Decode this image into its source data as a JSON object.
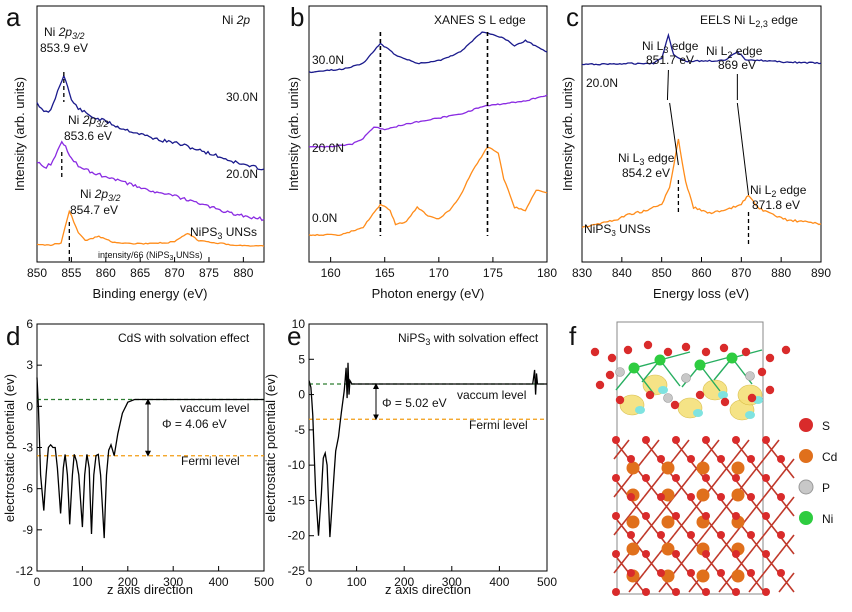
{
  "chart_data": [
    {
      "panel": "a",
      "type": "line",
      "title": "Ni 2p",
      "xlabel": "Binding energy (eV)",
      "ylabel": "Intensity (arb. units)",
      "xlim": [
        850,
        883
      ],
      "xticks": [
        850,
        855,
        860,
        865,
        870,
        875,
        880
      ],
      "series": [
        {
          "name": "30.0N",
          "color": "#1a1a8c",
          "offset": 3.4,
          "points": [
            [
              850,
              1.65
            ],
            [
              851,
              1.4
            ],
            [
              852,
              1.45
            ],
            [
              853,
              1.9
            ],
            [
              853.9,
              2.3
            ],
            [
              855,
              1.7
            ],
            [
              856,
              1.5
            ],
            [
              858,
              1.3
            ],
            [
              860,
              1.2
            ],
            [
              862,
              1.05
            ],
            [
              864,
              0.95
            ],
            [
              866,
              0.85
            ],
            [
              868,
              0.75
            ],
            [
              870,
              0.7
            ],
            [
              872,
              0.6
            ],
            [
              874,
              0.5
            ],
            [
              876,
              0.4
            ],
            [
              878,
              0.28
            ],
            [
              880,
              0.18
            ],
            [
              883,
              0.08
            ]
          ]
        },
        {
          "name": "20.0N",
          "color": "#8a2be2",
          "offset": 1.9,
          "points": [
            [
              850,
              1.35
            ],
            [
              851,
              1.2
            ],
            [
              852,
              1.3
            ],
            [
              853,
              1.6
            ],
            [
              853.6,
              1.85
            ],
            [
              855,
              1.45
            ],
            [
              856,
              1.25
            ],
            [
              858,
              1.1
            ],
            [
              860,
              1.0
            ],
            [
              862,
              0.9
            ],
            [
              864,
              0.8
            ],
            [
              866,
              0.7
            ],
            [
              868,
              0.6
            ],
            [
              870,
              0.55
            ],
            [
              872,
              0.45
            ],
            [
              874,
              0.35
            ],
            [
              876,
              0.25
            ],
            [
              878,
              0.15
            ],
            [
              880,
              0.08
            ],
            [
              883,
              0.0
            ]
          ]
        },
        {
          "name": "NiPS3 UNSs",
          "color": "#ff8c1a",
          "offset": 0,
          "points": [
            [
              850,
              0.15
            ],
            [
              852,
              0.15
            ],
            [
              853.5,
              0.2
            ],
            [
              854.7,
              0.95
            ],
            [
              856,
              0.45
            ],
            [
              857,
              0.25
            ],
            [
              859,
              0.35
            ],
            [
              861,
              0.22
            ],
            [
              864,
              0.18
            ],
            [
              867,
              0.18
            ],
            [
              870,
              0.22
            ],
            [
              871.9,
              0.42
            ],
            [
              873.5,
              0.25
            ],
            [
              876,
              0.2
            ],
            [
              879,
              0.14
            ],
            [
              883,
              0.12
            ]
          ]
        }
      ],
      "annotations": [
        {
          "text": "Ni 2p3/2",
          "value": "853.9 eV",
          "x": 853.9
        },
        {
          "text": "Ni 2p3/2",
          "value": "853.6 eV",
          "x": 853.6
        },
        {
          "text": "Ni 2p3/2",
          "value": "854.7 eV",
          "x": 854.7
        }
      ]
    },
    {
      "panel": "b",
      "type": "line",
      "title": "XANES S L edge",
      "xlabel": "Photon energy (eV)",
      "ylabel": "Intensity (arb. units)",
      "xlim": [
        158,
        180
      ],
      "xticks": [
        160,
        165,
        170,
        175,
        180
      ],
      "dashed_lines_x": [
        164.6,
        174.5
      ],
      "series": [
        {
          "name": "30.0N",
          "color": "#1a1a8c",
          "points": [
            [
              158,
              2.85
            ],
            [
              161,
              2.9
            ],
            [
              163,
              3.0
            ],
            [
              164.6,
              3.35
            ],
            [
              166,
              3.15
            ],
            [
              168,
              3.0
            ],
            [
              170,
              3.05
            ],
            [
              172,
              3.2
            ],
            [
              174,
              3.55
            ],
            [
              175,
              3.5
            ],
            [
              176,
              3.45
            ],
            [
              177,
              3.3
            ],
            [
              178,
              3.4
            ],
            [
              180,
              3.2
            ]
          ]
        },
        {
          "name": "20.0N",
          "color": "#8a2be2",
          "points": [
            [
              158,
              1.55
            ],
            [
              160,
              1.55
            ],
            [
              162,
              1.6
            ],
            [
              163,
              1.7
            ],
            [
              164,
              1.9
            ],
            [
              165,
              1.85
            ],
            [
              167,
              1.95
            ],
            [
              170,
              2.05
            ],
            [
              172,
              2.12
            ],
            [
              174,
              2.25
            ],
            [
              176,
              2.3
            ],
            [
              178,
              2.35
            ],
            [
              180,
              2.45
            ]
          ]
        },
        {
          "name": "0.0N",
          "color": "#ff8c1a",
          "points": [
            [
              158,
              0.02
            ],
            [
              161,
              0.02
            ],
            [
              163,
              0.15
            ],
            [
              164.6,
              0.55
            ],
            [
              165.5,
              0.45
            ],
            [
              166,
              0.2
            ],
            [
              167,
              0.25
            ],
            [
              168,
              0.5
            ],
            [
              169,
              0.35
            ],
            [
              170,
              0.3
            ],
            [
              171,
              0.45
            ],
            [
              172,
              0.7
            ],
            [
              173,
              1.1
            ],
            [
              174.5,
              1.55
            ],
            [
              175.5,
              1.45
            ],
            [
              176,
              1.0
            ],
            [
              177,
              0.5
            ],
            [
              178,
              0.45
            ],
            [
              179,
              0.8
            ],
            [
              180,
              0.75
            ]
          ]
        }
      ]
    },
    {
      "panel": "c",
      "type": "line",
      "title": "EELS Ni L2,3 edge",
      "xlabel": "Energy loss (eV)",
      "ylabel": "Intensity (arb. units)",
      "xlim": [
        830,
        890
      ],
      "xticks": [
        830,
        840,
        850,
        860,
        870,
        880,
        890
      ],
      "series": [
        {
          "name": "20.0N",
          "color": "#1a1a8c",
          "points": [
            [
              830,
              2.7
            ],
            [
              848,
              2.72
            ],
            [
              850,
              2.8
            ],
            [
              851.7,
              3.15
            ],
            [
              853,
              2.85
            ],
            [
              856,
              2.75
            ],
            [
              866,
              2.76
            ],
            [
              869,
              2.9
            ],
            [
              871,
              2.78
            ],
            [
              880,
              2.74
            ],
            [
              890,
              2.72
            ]
          ]
        },
        {
          "name": "NiPS3 UNSs",
          "color": "#ff8c1a",
          "points": [
            [
              830,
              0.2
            ],
            [
              838,
              0.3
            ],
            [
              842,
              0.4
            ],
            [
              846,
              0.45
            ],
            [
              850,
              0.55
            ],
            [
              852,
              0.8
            ],
            [
              854.2,
              1.55
            ],
            [
              856,
              0.9
            ],
            [
              858,
              0.5
            ],
            [
              862,
              0.42
            ],
            [
              866,
              0.45
            ],
            [
              870,
              0.55
            ],
            [
              871.8,
              0.7
            ],
            [
              874,
              0.5
            ],
            [
              878,
              0.38
            ],
            [
              882,
              0.3
            ],
            [
              886,
              0.28
            ],
            [
              890,
              0.25
            ]
          ]
        }
      ],
      "annotations": [
        {
          "text": "Ni L3 edge",
          "value": "851.7 eV"
        },
        {
          "text": "Ni L2 edge",
          "value": "869 eV"
        },
        {
          "text": "Ni L3 edge",
          "value": "854.2 eV"
        },
        {
          "text": "Ni L2 edge",
          "value": "871.8 eV"
        }
      ]
    },
    {
      "panel": "d",
      "type": "line",
      "title": "CdS with solvation effect",
      "xlabel": "z axis direction",
      "ylabel": "electrostatic potential (ev)",
      "xlim": [
        0,
        500
      ],
      "ylim": [
        -12,
        6
      ],
      "xticks": [
        0,
        100,
        200,
        300,
        400,
        500
      ],
      "yticks": [
        -12,
        -9,
        -6,
        -3,
        0,
        3,
        6
      ],
      "vacuum_level": 0.5,
      "fermi_level": -3.6,
      "work_function": "Φ = 4.06 eV",
      "series": [
        {
          "name": "potential",
          "color": "#000000",
          "points": [
            [
              0,
              2.1
            ],
            [
              3,
              0
            ],
            [
              8,
              -5
            ],
            [
              15,
              -7.6
            ],
            [
              20,
              -5
            ],
            [
              25,
              -3
            ],
            [
              30,
              -2.8
            ],
            [
              35,
              -3
            ],
            [
              40,
              -3
            ],
            [
              45,
              -4.5
            ],
            [
              52,
              -7.8
            ],
            [
              58,
              -4.5
            ],
            [
              62,
              -3.5
            ],
            [
              67,
              -5
            ],
            [
              72,
              -8.6
            ],
            [
              78,
              -5
            ],
            [
              82,
              -3.5
            ],
            [
              87,
              -4
            ],
            [
              92,
              -5
            ],
            [
              100,
              -8.8
            ],
            [
              105,
              -5
            ],
            [
              110,
              -3.5
            ],
            [
              115,
              -4.5
            ],
            [
              120,
              -9.3
            ],
            [
              125,
              -5
            ],
            [
              130,
              -3.6
            ],
            [
              135,
              -3.5
            ],
            [
              140,
              -5
            ],
            [
              148,
              -9.6
            ],
            [
              153,
              -5
            ],
            [
              158,
              -3.2
            ],
            [
              163,
              -2.8
            ],
            [
              170,
              -3.6
            ],
            [
              178,
              -2
            ],
            [
              188,
              -0.5
            ],
            [
              200,
              0.3
            ],
            [
              215,
              0.5
            ],
            [
              240,
              0.5
            ],
            [
              500,
              0.5
            ]
          ]
        }
      ]
    },
    {
      "panel": "e",
      "type": "line",
      "title": "NiPS3 with solvation effect",
      "xlabel": "z axis direction",
      "ylabel": "electrostatic potential (ev)",
      "xlim": [
        0,
        500
      ],
      "ylim": [
        -25,
        10
      ],
      "xticks": [
        0,
        100,
        200,
        300,
        400,
        500
      ],
      "yticks": [
        -25,
        -20,
        -15,
        -10,
        -5,
        0,
        5,
        10
      ],
      "vacuum_level": 1.5,
      "fermi_level": -3.5,
      "work_function": "Φ = 5.02 eV",
      "series": [
        {
          "name": "potential",
          "color": "#000000",
          "points": [
            [
              0,
              2
            ],
            [
              4,
              1
            ],
            [
              8,
              -3
            ],
            [
              14,
              -14
            ],
            [
              20,
              -20
            ],
            [
              26,
              -14
            ],
            [
              30,
              -9
            ],
            [
              34,
              -8.3
            ],
            [
              38,
              -10
            ],
            [
              44,
              -20.2
            ],
            [
              50,
              -14
            ],
            [
              56,
              -8
            ],
            [
              62,
              -6
            ],
            [
              68,
              -2.5
            ],
            [
              74,
              0.5
            ],
            [
              78,
              3.8
            ],
            [
              80,
              -0.5
            ],
            [
              82,
              4.5
            ],
            [
              84,
              0
            ],
            [
              86,
              2
            ],
            [
              90,
              1.5
            ],
            [
              200,
              1.5
            ],
            [
              470,
              1.5
            ],
            [
              474,
              3.5
            ],
            [
              476,
              0
            ],
            [
              478,
              3
            ],
            [
              480,
              1.5
            ],
            [
              500,
              1.5
            ]
          ]
        }
      ]
    }
  ],
  "labels": {
    "a": {
      "letter": "a",
      "ni2p": "Ni 2p",
      "ni_prefix": "Ni",
      "p32": "2p",
      "p32_sub": "3/2",
      "e30": "853.9 eV",
      "e20": "853.6 eV",
      "e0": "854.7 eV",
      "s30": "30.0N",
      "s20": "20.0N",
      "sunss_main": "NiPS",
      "sunss_sub": "3",
      "sunss_rest": " UNSs",
      "scale_note_a": "intensity/66 (NiPS",
      "scale_note_sub": "3",
      "scale_note_b": " UNSs)"
    },
    "b": {
      "letter": "b",
      "title": "XANES S L edge",
      "s30": "30.0N",
      "s20": "20.0N",
      "s0": "0.0N"
    },
    "c": {
      "letter": "c",
      "title_main": "EELS Ni L",
      "title_sub": "2,3",
      "title_rest": " edge",
      "s20": "20.0N",
      "sunss_main": "NiPS",
      "sunss_sub": "3",
      "sunss_rest": " UNSs",
      "l3a_main": "Ni L",
      "l3a_sub": "3",
      "l3a_rest": " edge",
      "l3a_e": "851.7 eV",
      "l2a_main": "Ni L",
      "l2a_sub": "2",
      "l2a_rest": " edge",
      "l2a_e": "869 eV",
      "l3b_main": "Ni L",
      "l3b_sub": "3",
      "l3b_rest": " edge",
      "l3b_e": "854.2 eV",
      "l2b_main": "Ni L",
      "l2b_sub": "2",
      "l2b_rest": " edge",
      "l2b_e": "871.8 eV"
    },
    "d": {
      "letter": "d",
      "title": "CdS with solvation effect",
      "vac": "vaccum level",
      "fermi": "Fermi level",
      "phi": "Φ = 4.06 eV"
    },
    "e": {
      "letter": "e",
      "title_main": "NiPS",
      "title_sub": "3",
      "title_rest": " with solvation effect",
      "vac": "vaccum level",
      "fermi": "Fermi level",
      "phi": "Φ = 5.02 eV"
    },
    "f": {
      "letter": "f",
      "legend": [
        "S",
        "Cd",
        "P",
        "Ni"
      ]
    }
  },
  "colors": {
    "navy": "#1a1a8c",
    "violet": "#8a2be2",
    "orange": "#ff8c1a",
    "green_dash": "#2e7d32",
    "orange_dash": "#f39c12",
    "S": "#d92b2b",
    "Cd": "#e0701c",
    "P": "#c8c8c8",
    "Ni": "#2ecc40"
  }
}
